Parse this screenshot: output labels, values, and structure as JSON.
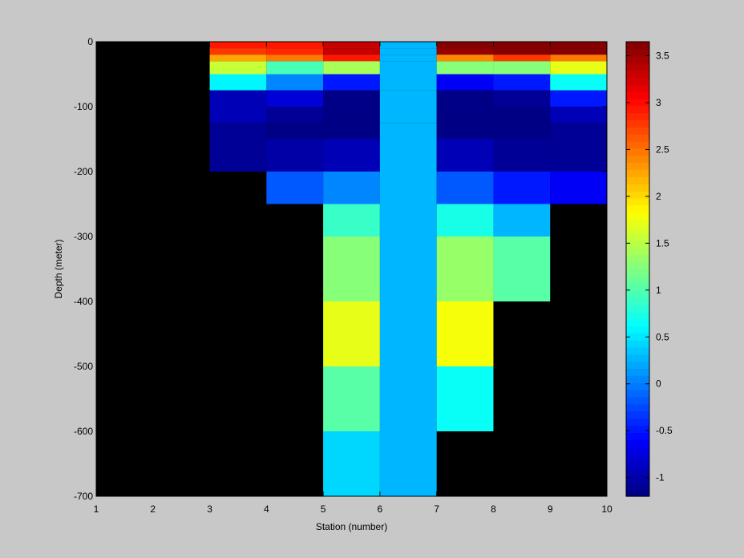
{
  "chart_data": {
    "type": "heatmap",
    "title": "",
    "xlabel": "Station (number)",
    "ylabel": "Depth (meter)",
    "xlim": [
      1,
      10
    ],
    "ylim": [
      -700,
      0
    ],
    "x_ticks": [
      1,
      2,
      3,
      4,
      5,
      6,
      7,
      8,
      9,
      10
    ],
    "y_ticks": [
      0,
      -100,
      -200,
      -300,
      -400,
      -500,
      -600,
      -700
    ],
    "colorbar": {
      "colormap": "jet",
      "clim": [
        -1.2,
        3.65
      ],
      "ticks": [
        -1,
        -0.5,
        0,
        0.5,
        1,
        1.5,
        2,
        2.5,
        3,
        3.5
      ],
      "levels": 64
    },
    "background_color": "#000000",
    "depth_bins": [
      [
        0,
        -10
      ],
      [
        -10,
        -20
      ],
      [
        -20,
        -30
      ],
      [
        -30,
        -50
      ],
      [
        -50,
        -75
      ],
      [
        -75,
        -100
      ],
      [
        -100,
        -125
      ],
      [
        -125,
        -150
      ],
      [
        -150,
        -200
      ],
      [
        -200,
        -250
      ],
      [
        -250,
        -300
      ],
      [
        -300,
        -400
      ],
      [
        -400,
        -500
      ],
      [
        -500,
        -600
      ],
      [
        -600,
        -700
      ]
    ],
    "columns": [
      {
        "station": 3,
        "values": [
          2.95,
          2.75,
          2.25,
          1.55,
          0.6,
          -0.9,
          -0.95,
          -1.05,
          -1.1,
          null,
          null,
          null,
          null,
          null,
          null
        ]
      },
      {
        "station": 4,
        "values": [
          2.9,
          2.85,
          2.5,
          0.95,
          0.05,
          -0.8,
          -1.05,
          -1.2,
          -1.0,
          -0.2,
          null,
          null,
          null,
          null,
          null
        ]
      },
      {
        "station": 5,
        "values": [
          3.3,
          3.3,
          2.9,
          1.4,
          -0.45,
          -1.15,
          -1.2,
          -1.2,
          -0.95,
          0.05,
          0.85,
          1.3,
          1.7,
          1.0,
          0.4
        ]
      },
      {
        "station": 6,
        "values": [
          0.25,
          0.25,
          0.25,
          0.25,
          0.25,
          0.25,
          0.25,
          0.25,
          0.25,
          0.25,
          0.25,
          0.25,
          0.25,
          0.25,
          0.25
        ]
      },
      {
        "station": 7,
        "values": [
          3.6,
          3.55,
          2.4,
          1.3,
          -0.65,
          -1.15,
          -1.2,
          -1.15,
          -0.9,
          -0.15,
          0.75,
          1.35,
          1.8,
          0.65,
          null
        ]
      },
      {
        "station": 8,
        "values": [
          3.6,
          3.6,
          2.75,
          1.3,
          -0.5,
          -1.05,
          -1.2,
          -1.2,
          -1.05,
          -0.5,
          0.3,
          1.05,
          null,
          null,
          null
        ]
      },
      {
        "station": 9,
        "values": [
          3.65,
          3.6,
          2.45,
          1.75,
          0.65,
          -0.5,
          -0.95,
          -1.1,
          -1.05,
          -0.65,
          null,
          null,
          null,
          null,
          null
        ]
      }
    ]
  }
}
